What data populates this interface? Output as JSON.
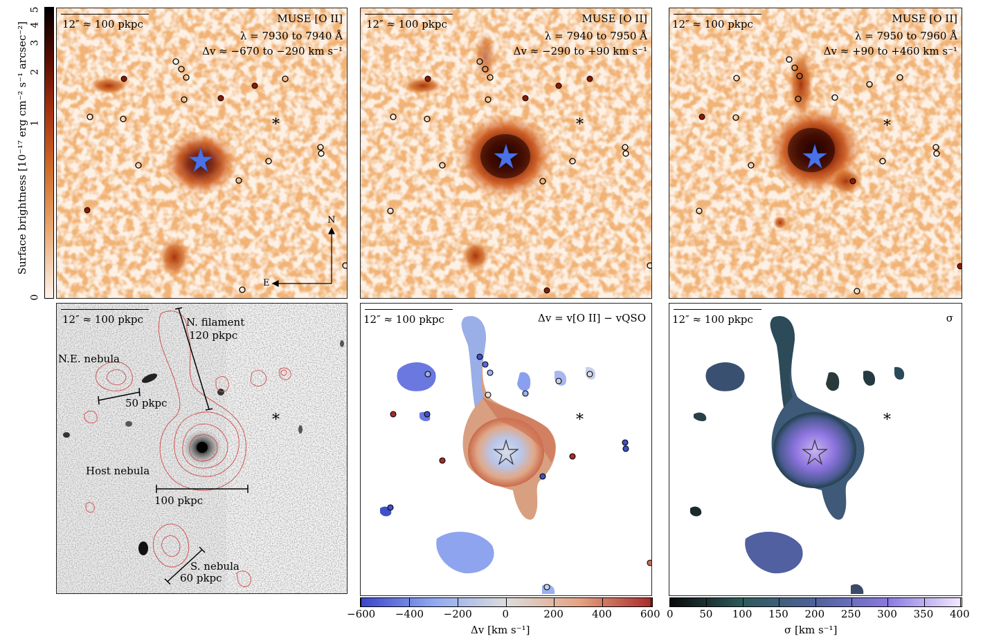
{
  "scale_bar": "12″ ≈ 100 pkpc",
  "top_panels": [
    {
      "instrument": "MUSE [O II]",
      "lambda": "λ = 7930 to 7940 Å",
      "dv": "Δv ≈ −670 to −290 km s⁻¹"
    },
    {
      "instrument": "MUSE [O II]",
      "lambda": "λ = 7940 to 7950 Å",
      "dv": "Δv ≈ −290 to +90 km s⁻¹"
    },
    {
      "instrument": "MUSE [O II]",
      "lambda": "λ = 7950 to 7960 Å",
      "dv": "Δv ≈ +90 to +460 km s⁻¹"
    }
  ],
  "colorbar_left": {
    "title": "Surface brightness [10⁻¹⁷ erg cm⁻² s⁻¹ arcsec⁻²]",
    "ticks": [
      "0",
      "1",
      "2",
      "3",
      "4",
      "5"
    ]
  },
  "compass": {
    "north": "N",
    "east": "E"
  },
  "hst_panel": {
    "labels": {
      "filament": "N. filament",
      "filament_size": "120 pkpc",
      "ne_nebula": "N.E. nebula",
      "ne_size": "50 pkpc",
      "host": "Host nebula",
      "host_size": "100 pkpc",
      "s_nebula": "S. nebula",
      "s_size": "60 pkpc"
    }
  },
  "velocity_panel": {
    "title": "Δv = v[O II] − vQSO",
    "colorbar": {
      "ticks": [
        "−600",
        "−400",
        "−200",
        "0",
        "200",
        "400",
        "600"
      ],
      "label": "Δv [km s⁻¹]",
      "colors": [
        "#3a45c8",
        "#8fa8f0",
        "#dcdcdc",
        "#e4a383",
        "#a82a2a"
      ]
    }
  },
  "sigma_panel": {
    "title": "σ",
    "colorbar": {
      "ticks": [
        "0",
        "50",
        "100",
        "150",
        "200",
        "250",
        "300",
        "350",
        "400"
      ],
      "label": "σ [km s⁻¹]",
      "colors": [
        "#0a0a0a",
        "#2e5a5a",
        "#50629a",
        "#8a7ae0",
        "#f4eaff"
      ]
    }
  },
  "asterisk": "*",
  "colors": {
    "oii_dark": "#2a0500",
    "oii_mid": "#c5561c",
    "oii_light": "#fbeadc",
    "star_blue": "#4a72e8",
    "contour_red": "#d04848"
  }
}
